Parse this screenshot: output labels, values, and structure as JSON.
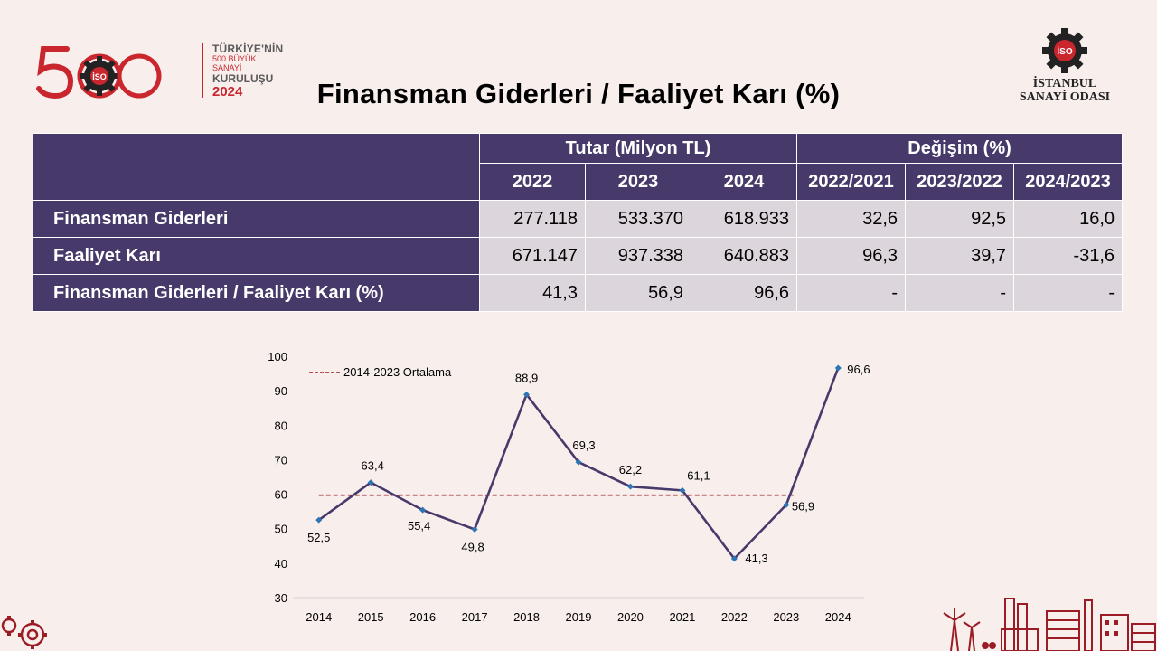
{
  "logo": {
    "digits": "500",
    "line1": "TÜRKİYE'NİN",
    "line2": "500 BÜYÜK SANAYİ",
    "line3": "KURULUŞU",
    "line4": "2024",
    "badge": "İSO"
  },
  "iso_logo": {
    "line1": "İSTANBUL",
    "line2": "SANAYİ ODASI",
    "badge": "İSO"
  },
  "title": "Finansman Giderleri / Faaliyet Karı (%)",
  "table": {
    "group_headers": [
      "Tutar (Milyon TL)",
      "Değişim (%)"
    ],
    "columns": [
      "2022",
      "2023",
      "2024",
      "2022/2021",
      "2023/2022",
      "2024/2023"
    ],
    "rows": [
      {
        "label": "Finansman Giderleri",
        "values": [
          "277.118",
          "533.370",
          "618.933",
          "32,6",
          "92,5",
          "16,0"
        ]
      },
      {
        "label": "Faaliyet Karı",
        "values": [
          "671.147",
          "937.338",
          "640.883",
          "96,3",
          "39,7",
          "-31,6"
        ]
      },
      {
        "label": "Finansman Giderleri / Faaliyet Karı (%)",
        "values": [
          "41,3",
          "56,9",
          "96,6",
          "-",
          "-",
          "-"
        ]
      }
    ]
  },
  "chart_data": {
    "type": "line",
    "x": [
      "2014",
      "2015",
      "2016",
      "2017",
      "2018",
      "2019",
      "2020",
      "2021",
      "2022",
      "2023",
      "2024"
    ],
    "series": [
      {
        "values": [
          52.5,
          63.4,
          55.4,
          49.8,
          88.9,
          69.3,
          62.2,
          61.1,
          41.3,
          56.9,
          96.6
        ],
        "color": "#473a6b"
      }
    ],
    "data_labels": [
      "52,5",
      "63,4",
      "55,4",
      "49,8",
      "88,9",
      "69,3",
      "62,2",
      "61,1",
      "41,3",
      "56,9",
      "96,6"
    ],
    "reference_line": {
      "name": "2014-2023 Ortalama",
      "value": 59.7,
      "color": "#9b1c24",
      "style": "dashed"
    },
    "ylim": [
      30,
      100
    ],
    "yticks": [
      "30",
      "40",
      "50",
      "60",
      "70",
      "80",
      "90",
      "100"
    ],
    "ytick_values": [
      30,
      40,
      50,
      60,
      70,
      80,
      90,
      100
    ],
    "marker_color": "#2e75b6",
    "legend_position": "top-left",
    "grid": false
  }
}
